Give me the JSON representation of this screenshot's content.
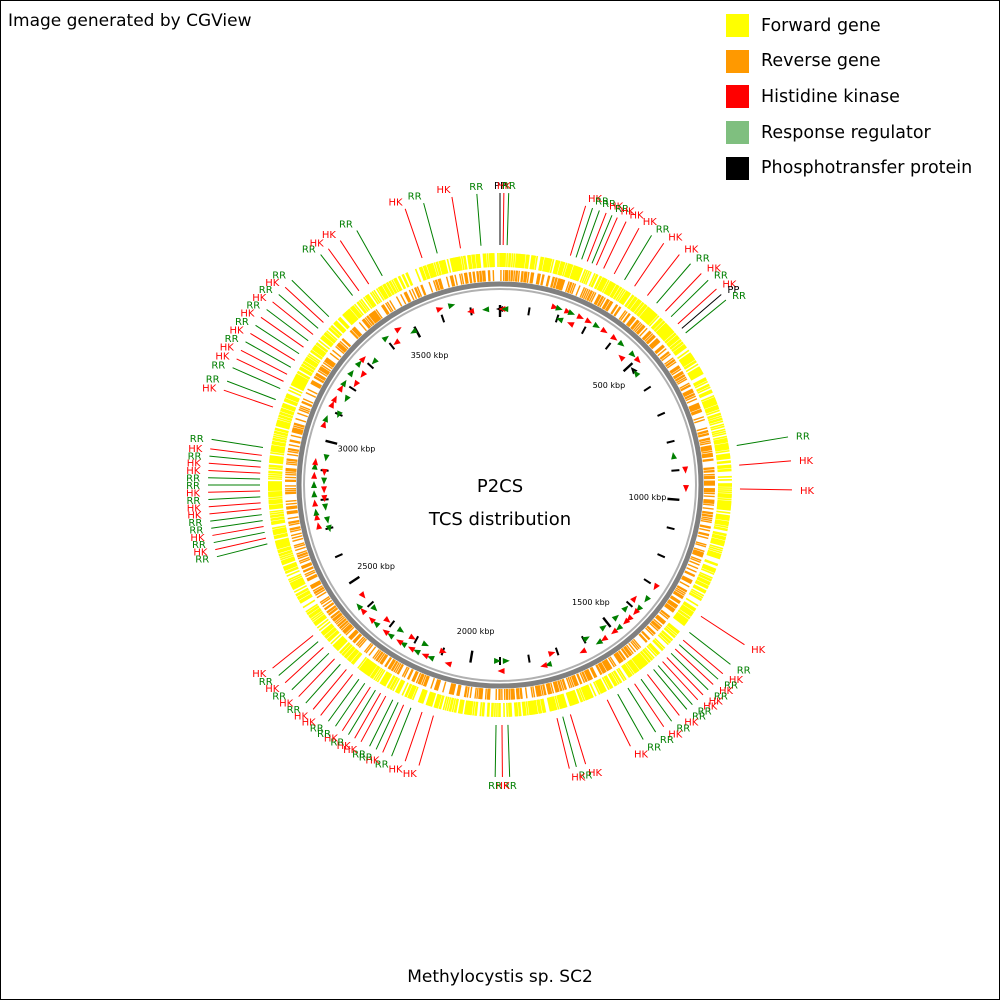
{
  "credit": "Image generated by CGView",
  "organism": "Methylocystis sp. SC2",
  "center": {
    "line1": "P2CS",
    "line2": "TCS distribution"
  },
  "legend": [
    {
      "label": "Forward gene",
      "color": "#ffff00"
    },
    {
      "label": "Reverse gene",
      "color": "#ff9900"
    },
    {
      "label": "Histidine kinase",
      "color": "#ff0000"
    },
    {
      "label": "Response regulator",
      "color": "#7fbf7f"
    },
    {
      "label": "Phosphotransfer protein",
      "color": "#000000"
    }
  ],
  "colors": {
    "HK": "#ff0000",
    "RR": "#007f00",
    "PP": "#000000",
    "forward": "#ffff00",
    "reverse": "#ff9900",
    "backbone": "#808080"
  },
  "genome_kbp": 3800,
  "scale_labels": [
    {
      "kbp": 500,
      "label": "500 kbp"
    },
    {
      "kbp": 1000,
      "label": "1000 kbp"
    },
    {
      "kbp": 1500,
      "label": "1500 kbp"
    },
    {
      "kbp": 2000,
      "label": "2000 kbp"
    },
    {
      "kbp": 2500,
      "label": "2500 kbp"
    },
    {
      "kbp": 3000,
      "label": "3000 kbp"
    },
    {
      "kbp": 3500,
      "label": "3500 kbp"
    }
  ],
  "features": [
    {
      "kbp": 0,
      "type": "PP",
      "strand": "-"
    },
    {
      "kbp": 8,
      "type": "HK",
      "strand": "-"
    },
    {
      "kbp": 18,
      "type": "RR",
      "strand": "-"
    },
    {
      "kbp": 3752,
      "type": "RR",
      "strand": "-"
    },
    {
      "kbp": 180,
      "type": "HK",
      "strand": "+"
    },
    {
      "kbp": 195,
      "type": "RR",
      "strand": "+"
    },
    {
      "kbp": 210,
      "type": "RR",
      "strand": "-"
    },
    {
      "kbp": 225,
      "type": "HK",
      "strand": "+"
    },
    {
      "kbp": 238,
      "type": "RR",
      "strand": "+"
    },
    {
      "kbp": 250,
      "type": "HK",
      "strand": "-"
    },
    {
      "kbp": 270,
      "type": "HK",
      "strand": "+"
    },
    {
      "kbp": 300,
      "type": "HK",
      "strand": "+"
    },
    {
      "kbp": 330,
      "type": "RR",
      "strand": "+"
    },
    {
      "kbp": 360,
      "type": "HK",
      "strand": "+"
    },
    {
      "kbp": 400,
      "type": "HK",
      "strand": "+"
    },
    {
      "kbp": 430,
      "type": "RR",
      "strand": "+"
    },
    {
      "kbp": 460,
      "type": "HK",
      "strand": "-"
    },
    {
      "kbp": 480,
      "type": "RR",
      "strand": "+"
    },
    {
      "kbp": 505,
      "type": "HK",
      "strand": "+"
    },
    {
      "kbp": 520,
      "type": "PP",
      "strand": "-"
    },
    {
      "kbp": 535,
      "type": "RR",
      "strand": "-"
    },
    {
      "kbp": 850,
      "type": "RR",
      "strand": "-"
    },
    {
      "kbp": 900,
      "type": "HK",
      "strand": "+"
    },
    {
      "kbp": 960,
      "type": "HK",
      "strand": "+"
    },
    {
      "kbp": 1300,
      "type": "HK",
      "strand": "+"
    },
    {
      "kbp": 1350,
      "type": "RR",
      "strand": "+"
    },
    {
      "kbp": 1375,
      "type": "HK",
      "strand": "-"
    },
    {
      "kbp": 1390,
      "type": "RR",
      "strand": "+"
    },
    {
      "kbp": 1405,
      "type": "HK",
      "strand": "+"
    },
    {
      "kbp": 1420,
      "type": "RR",
      "strand": "-"
    },
    {
      "kbp": 1435,
      "type": "HK",
      "strand": "+"
    },
    {
      "kbp": 1450,
      "type": "HK",
      "strand": "+"
    },
    {
      "kbp": 1465,
      "type": "RR",
      "strand": "-"
    },
    {
      "kbp": 1480,
      "type": "RR",
      "strand": "+"
    },
    {
      "kbp": 1500,
      "type": "HK",
      "strand": "+"
    },
    {
      "kbp": 1520,
      "type": "RR",
      "strand": "-"
    },
    {
      "kbp": 1540,
      "type": "HK",
      "strand": "+"
    },
    {
      "kbp": 1560,
      "type": "RR",
      "strand": "+"
    },
    {
      "kbp": 1590,
      "type": "RR",
      "strand": "-"
    },
    {
      "kbp": 1620,
      "type": "HK",
      "strand": "+"
    },
    {
      "kbp": 1720,
      "type": "HK",
      "strand": "-"
    },
    {
      "kbp": 1740,
      "type": "RR",
      "strand": "+"
    },
    {
      "kbp": 1755,
      "type": "HK",
      "strand": "+"
    },
    {
      "kbp": 1880,
      "type": "RR",
      "strand": "-"
    },
    {
      "kbp": 1895,
      "type": "HK",
      "strand": "+"
    },
    {
      "kbp": 1910,
      "type": "RR",
      "strand": "-"
    },
    {
      "kbp": 2070,
      "type": "HK",
      "strand": "+"
    },
    {
      "kbp": 2100,
      "type": "HK",
      "strand": "-"
    },
    {
      "kbp": 2130,
      "type": "RR",
      "strand": "+"
    },
    {
      "kbp": 2150,
      "type": "HK",
      "strand": "+"
    },
    {
      "kbp": 2165,
      "type": "RR",
      "strand": "-"
    },
    {
      "kbp": 2180,
      "type": "RR",
      "strand": "+"
    },
    {
      "kbp": 2200,
      "type": "HK",
      "strand": "+"
    },
    {
      "kbp": 2215,
      "type": "HK",
      "strand": "-"
    },
    {
      "kbp": 2230,
      "type": "RR",
      "strand": "+"
    },
    {
      "kbp": 2245,
      "type": "HK",
      "strand": "+"
    },
    {
      "kbp": 2262,
      "type": "RR",
      "strand": "-"
    },
    {
      "kbp": 2280,
      "type": "RR",
      "strand": "+"
    },
    {
      "kbp": 2300,
      "type": "HK",
      "strand": "+"
    },
    {
      "kbp": 2320,
      "type": "HK",
      "strand": "-"
    },
    {
      "kbp": 2340,
      "type": "RR",
      "strand": "+"
    },
    {
      "kbp": 2360,
      "type": "HK",
      "strand": "+"
    },
    {
      "kbp": 2380,
      "type": "RR",
      "strand": "-"
    },
    {
      "kbp": 2400,
      "type": "HK",
      "strand": "+"
    },
    {
      "kbp": 2420,
      "type": "RR",
      "strand": "+"
    },
    {
      "kbp": 2440,
      "type": "HK",
      "strand": "-"
    },
    {
      "kbp": 2700,
      "type": "RR",
      "strand": "-"
    },
    {
      "kbp": 2715,
      "type": "HK",
      "strand": "+"
    },
    {
      "kbp": 2730,
      "type": "RR",
      "strand": "-"
    },
    {
      "kbp": 2745,
      "type": "HK",
      "strand": "+"
    },
    {
      "kbp": 2760,
      "type": "RR",
      "strand": "+"
    },
    {
      "kbp": 2775,
      "type": "RR",
      "strand": "-"
    },
    {
      "kbp": 2790,
      "type": "HK",
      "strand": "+"
    },
    {
      "kbp": 2805,
      "type": "HK",
      "strand": "-"
    },
    {
      "kbp": 2820,
      "type": "RR",
      "strand": "+"
    },
    {
      "kbp": 2835,
      "type": "HK",
      "strand": "-"
    },
    {
      "kbp": 2850,
      "type": "RR",
      "strand": "+"
    },
    {
      "kbp": 2865,
      "type": "RR",
      "strand": "-"
    },
    {
      "kbp": 2880,
      "type": "HK",
      "strand": "+"
    },
    {
      "kbp": 2895,
      "type": "HK",
      "strand": "-"
    },
    {
      "kbp": 2910,
      "type": "RR",
      "strand": "+"
    },
    {
      "kbp": 2925,
      "type": "HK",
      "strand": "+"
    },
    {
      "kbp": 2945,
      "type": "RR",
      "strand": "-"
    },
    {
      "kbp": 3050,
      "type": "HK",
      "strand": "+"
    },
    {
      "kbp": 3070,
      "type": "RR",
      "strand": "+"
    },
    {
      "kbp": 3100,
      "type": "RR",
      "strand": "-"
    },
    {
      "kbp": 3120,
      "type": "HK",
      "strand": "+"
    },
    {
      "kbp": 3140,
      "type": "HK",
      "strand": "+"
    },
    {
      "kbp": 3160,
      "type": "RR",
      "strand": "-"
    },
    {
      "kbp": 3180,
      "type": "HK",
      "strand": "+"
    },
    {
      "kbp": 3200,
      "type": "RR",
      "strand": "+"
    },
    {
      "kbp": 3220,
      "type": "HK",
      "strand": "-"
    },
    {
      "kbp": 3240,
      "type": "RR",
      "strand": "+"
    },
    {
      "kbp": 3260,
      "type": "HK",
      "strand": "-"
    },
    {
      "kbp": 3280,
      "type": "RR",
      "strand": "+"
    },
    {
      "kbp": 3300,
      "type": "HK",
      "strand": "+"
    },
    {
      "kbp": 3320,
      "type": "RR",
      "strand": "-"
    },
    {
      "kbp": 3400,
      "type": "RR",
      "strand": "+"
    },
    {
      "kbp": 3420,
      "type": "HK",
      "strand": "-"
    },
    {
      "kbp": 3450,
      "type": "HK",
      "strand": "+"
    },
    {
      "kbp": 3490,
      "type": "RR",
      "strand": "-"
    },
    {
      "kbp": 3600,
      "type": "HK",
      "strand": "+"
    },
    {
      "kbp": 3640,
      "type": "RR",
      "strand": "+"
    },
    {
      "kbp": 3700,
      "type": "HK",
      "strand": "-"
    }
  ]
}
